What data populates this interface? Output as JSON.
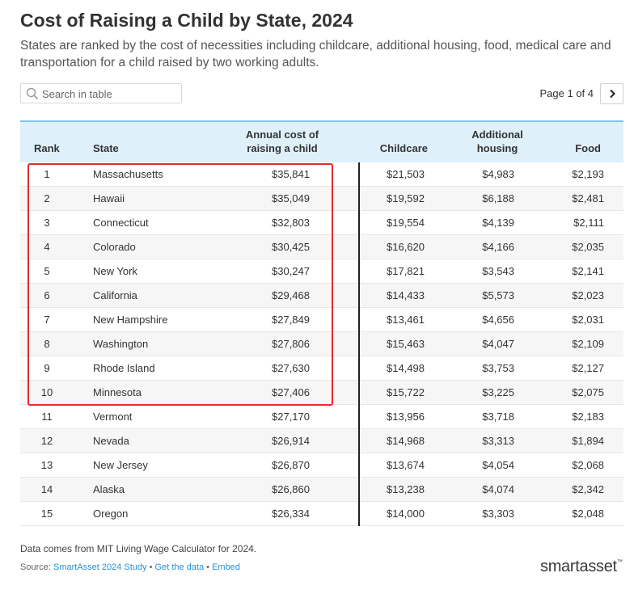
{
  "header": {
    "title": "Cost of Raising a Child by State, 2024",
    "subtitle": "States are ranked by the cost of necessities including childcare, additional housing, food, medical care and transportation for a child raised by two working adults."
  },
  "search": {
    "placeholder": "Search in table"
  },
  "pagination": {
    "label": "Page 1 of 4",
    "current_page": 1,
    "total_pages": 4
  },
  "colors": {
    "header_bg": "#dff0fb",
    "header_border": "#7ec3ea",
    "highlight": "#e32b2b",
    "link": "#2a8fd6"
  },
  "icons": {
    "search": "search-icon",
    "next": "chevron-right-icon"
  },
  "chart_data": {
    "type": "table",
    "columns": [
      "Rank",
      "State",
      "Annual cost of raising a child",
      "Childcare",
      "Additional housing",
      "Food"
    ],
    "rows": [
      [
        "1",
        "Massachusetts",
        "$35,841",
        "$21,503",
        "$4,983",
        "$2,193"
      ],
      [
        "2",
        "Hawaii",
        "$35,049",
        "$19,592",
        "$6,188",
        "$2,481"
      ],
      [
        "3",
        "Connecticut",
        "$32,803",
        "$19,554",
        "$4,139",
        "$2,111"
      ],
      [
        "4",
        "Colorado",
        "$30,425",
        "$16,620",
        "$4,166",
        "$2,035"
      ],
      [
        "5",
        "New York",
        "$30,247",
        "$17,821",
        "$3,543",
        "$2,141"
      ],
      [
        "6",
        "California",
        "$29,468",
        "$14,433",
        "$5,573",
        "$2,023"
      ],
      [
        "7",
        "New Hampshire",
        "$27,849",
        "$13,461",
        "$4,656",
        "$2,031"
      ],
      [
        "8",
        "Washington",
        "$27,806",
        "$15,463",
        "$4,047",
        "$2,109"
      ],
      [
        "9",
        "Rhode Island",
        "$27,630",
        "$14,498",
        "$3,753",
        "$2,127"
      ],
      [
        "10",
        "Minnesota",
        "$27,406",
        "$15,722",
        "$3,225",
        "$2,075"
      ],
      [
        "11",
        "Vermont",
        "$27,170",
        "$13,956",
        "$3,718",
        "$2,183"
      ],
      [
        "12",
        "Nevada",
        "$26,914",
        "$14,968",
        "$3,313",
        "$1,894"
      ],
      [
        "13",
        "New Jersey",
        "$26,870",
        "$13,674",
        "$4,054",
        "$2,068"
      ],
      [
        "14",
        "Alaska",
        "$26,860",
        "$13,238",
        "$4,074",
        "$2,342"
      ],
      [
        "15",
        "Oregon",
        "$26,334",
        "$14,000",
        "$3,303",
        "$2,048"
      ]
    ],
    "highlighted_ranks": [
      1,
      2,
      3,
      4,
      5,
      6,
      7,
      8,
      9,
      10
    ]
  },
  "footer": {
    "note": "Data comes from MIT Living Wage Calculator for 2024.",
    "source_prefix": "Source:",
    "source_link": "SmartAsset 2024 Study",
    "separator": "•",
    "get_data_link": "Get the data",
    "embed_link": "Embed",
    "logo": "smartasset",
    "logo_tm": "™"
  }
}
